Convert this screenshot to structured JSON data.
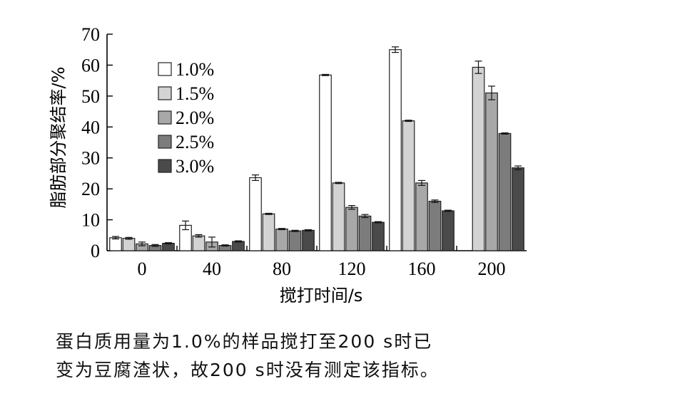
{
  "chart_data": {
    "type": "bar",
    "title": "",
    "xlabel": "搅打时间/s",
    "ylabel": "脂肪部分聚结率/%",
    "categories": [
      "0",
      "40",
      "80",
      "120",
      "160",
      "200"
    ],
    "ylim": [
      0,
      70
    ],
    "yticks": [
      0,
      10,
      20,
      30,
      40,
      50,
      60,
      70
    ],
    "grid": false,
    "legend_position": "top-left",
    "series": [
      {
        "name": "1.0%",
        "color": "#ffffff",
        "values": [
          4.2,
          8.2,
          23.6,
          56.8,
          65.0,
          null
        ],
        "errors": [
          0.4,
          1.4,
          0.9,
          0.2,
          0.9,
          null
        ]
      },
      {
        "name": "1.5%",
        "color": "#d3d3d3",
        "values": [
          4.0,
          4.8,
          11.9,
          21.9,
          42.0,
          59.3
        ],
        "errors": [
          0.3,
          0.4,
          0.2,
          0.2,
          0.2,
          2.0
        ]
      },
      {
        "name": "2.0%",
        "color": "#a8a8a8",
        "values": [
          2.2,
          2.8,
          7.0,
          14.0,
          21.9,
          51.0
        ],
        "errors": [
          0.6,
          1.6,
          0.2,
          0.6,
          0.8,
          2.2
        ]
      },
      {
        "name": "2.5%",
        "color": "#7c7c7c",
        "values": [
          1.7,
          1.7,
          6.4,
          11.2,
          16.0,
          37.9
        ],
        "errors": [
          0.3,
          0.2,
          0.2,
          0.5,
          0.4,
          0.2
        ]
      },
      {
        "name": "3.0%",
        "color": "#4a4a4a",
        "values": [
          2.4,
          3.0,
          6.6,
          9.2,
          12.9,
          26.8
        ],
        "errors": [
          0.2,
          0.2,
          0.2,
          0.2,
          0.2,
          0.6
        ]
      }
    ]
  },
  "caption": {
    "line1": "蛋白质用量为1.0%的样品搅打至200 s时已",
    "line2": "变为豆腐渣状，故200 s时没有测定该指标。"
  }
}
